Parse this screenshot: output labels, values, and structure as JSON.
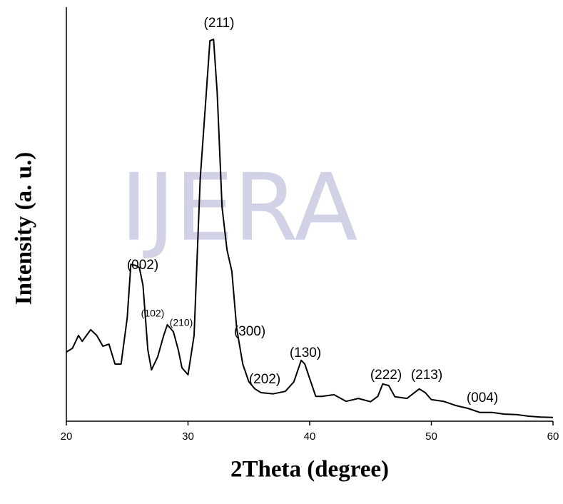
{
  "chart_data": {
    "type": "line",
    "watermark": "IJERA",
    "xlabel": "2Theta (degree)",
    "ylabel": "Intensity (a. u.)",
    "xlim": [
      20,
      60
    ],
    "xticks": [
      20,
      30,
      40,
      50,
      60
    ],
    "ylim": [
      0,
      100
    ],
    "color": "#000000",
    "x": [
      20,
      20.5,
      21,
      21.3,
      22,
      22.5,
      23,
      23.5,
      24,
      24.5,
      25,
      25.3,
      25.7,
      26,
      26.3,
      26.7,
      27,
      27.5,
      28,
      28.3,
      28.8,
      29.2,
      29.5,
      30,
      30.5,
      31,
      31.5,
      31.8,
      32.1,
      32.4,
      32.8,
      33.2,
      33.6,
      34,
      34.5,
      35,
      35.5,
      36,
      37,
      38,
      38.7,
      39.3,
      39.6,
      40,
      40.5,
      41,
      42,
      43,
      44,
      45,
      45.6,
      46,
      46.5,
      47,
      48,
      49,
      49.5,
      50,
      51,
      52,
      53,
      54,
      55,
      56,
      57,
      58,
      59,
      60
    ],
    "values": [
      16.7,
      17.6,
      20.7,
      19.3,
      22.1,
      20.7,
      18.1,
      18.6,
      13.8,
      13.8,
      25,
      37.9,
      37.6,
      37.1,
      32.8,
      17.2,
      12.4,
      15.5,
      20.7,
      23.3,
      21.6,
      17.2,
      12.9,
      11.2,
      20.7,
      58.6,
      79.3,
      91.9,
      92.2,
      79.3,
      51.7,
      41.4,
      36.2,
      22.4,
      13.8,
      9.5,
      7.8,
      6.9,
      6.6,
      7.2,
      9.5,
      14.7,
      13.8,
      10.3,
      6.0,
      6.0,
      6.4,
      4.8,
      5.5,
      4.7,
      6.0,
      9.0,
      8.6,
      5.9,
      5.5,
      7.8,
      6.9,
      5.2,
      4.8,
      3.8,
      3.1,
      2.1,
      2.1,
      1.7,
      1.6,
      1.2,
      1.0,
      0.9
    ],
    "annotations": [
      "(211)",
      "(002)",
      "(102)",
      "(210)",
      "(300)",
      "(202)",
      "(130)",
      "(222)",
      "(213)",
      "(004)"
    ]
  }
}
